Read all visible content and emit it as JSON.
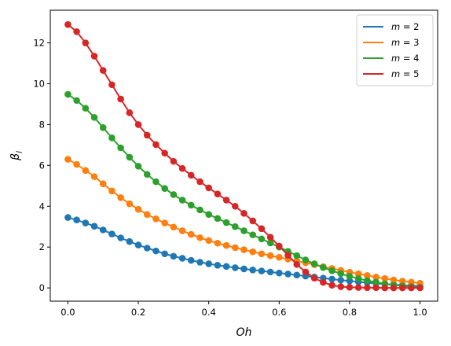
{
  "chart_data": {
    "type": "line",
    "title": "",
    "xlabel": "Oh",
    "ylabel": "β_l",
    "xlim": [
      -0.05,
      1.05
    ],
    "ylim": [
      -0.65,
      13.6
    ],
    "xticks": [
      0.0,
      0.2,
      0.4,
      0.6,
      0.8,
      1.0
    ],
    "xtick_labels": [
      "0.0",
      "0.2",
      "0.4",
      "0.6",
      "0.8",
      "1.0"
    ],
    "yticks": [
      0,
      2,
      4,
      6,
      8,
      10,
      12
    ],
    "ytick_labels": [
      "0",
      "2",
      "4",
      "6",
      "8",
      "10",
      "12"
    ],
    "grid": false,
    "legend_position": "top-right",
    "markers": "filled circles on each series",
    "series": [
      {
        "name": "m = 2",
        "color": "#1f77b4",
        "x": [
          0.0,
          0.025,
          0.05,
          0.075,
          0.1,
          0.125,
          0.15,
          0.175,
          0.2,
          0.225,
          0.25,
          0.275,
          0.3,
          0.325,
          0.35,
          0.375,
          0.4,
          0.425,
          0.45,
          0.475,
          0.5,
          0.525,
          0.55,
          0.575,
          0.6,
          0.625,
          0.65,
          0.675,
          0.7,
          0.725,
          0.75,
          0.775,
          0.8,
          0.825,
          0.85,
          0.875,
          0.9,
          0.925,
          0.95,
          0.975,
          1.0
        ],
        "y": [
          3.45,
          3.33,
          3.18,
          3.02,
          2.84,
          2.64,
          2.45,
          2.27,
          2.1,
          1.95,
          1.81,
          1.67,
          1.55,
          1.45,
          1.35,
          1.26,
          1.18,
          1.11,
          1.05,
          0.99,
          0.93,
          0.88,
          0.83,
          0.78,
          0.73,
          0.68,
          0.63,
          0.58,
          0.53,
          0.48,
          0.43,
          0.38,
          0.34,
          0.3,
          0.26,
          0.22,
          0.19,
          0.16,
          0.13,
          0.11,
          0.09
        ]
      },
      {
        "name": "m = 3",
        "color": "#ff7f0e",
        "x": [
          0.0,
          0.025,
          0.05,
          0.075,
          0.1,
          0.125,
          0.15,
          0.175,
          0.2,
          0.225,
          0.25,
          0.275,
          0.3,
          0.325,
          0.35,
          0.375,
          0.4,
          0.425,
          0.45,
          0.475,
          0.5,
          0.525,
          0.55,
          0.575,
          0.6,
          0.625,
          0.65,
          0.675,
          0.7,
          0.725,
          0.75,
          0.775,
          0.8,
          0.825,
          0.85,
          0.875,
          0.9,
          0.925,
          0.95,
          0.975,
          1.0
        ],
        "y": [
          6.3,
          6.05,
          5.75,
          5.45,
          5.1,
          4.75,
          4.42,
          4.12,
          3.85,
          3.6,
          3.38,
          3.18,
          2.98,
          2.8,
          2.62,
          2.46,
          2.32,
          2.19,
          2.08,
          1.97,
          1.87,
          1.77,
          1.67,
          1.58,
          1.5,
          1.41,
          1.32,
          1.23,
          1.14,
          1.04,
          0.95,
          0.86,
          0.77,
          0.69,
          0.61,
          0.53,
          0.46,
          0.39,
          0.33,
          0.28,
          0.23
        ]
      },
      {
        "name": "m = 4",
        "color": "#2ca02c",
        "x": [
          0.0,
          0.025,
          0.05,
          0.075,
          0.1,
          0.125,
          0.15,
          0.175,
          0.2,
          0.225,
          0.25,
          0.275,
          0.3,
          0.325,
          0.35,
          0.375,
          0.4,
          0.425,
          0.45,
          0.475,
          0.5,
          0.525,
          0.55,
          0.575,
          0.6,
          0.625,
          0.65,
          0.675,
          0.7,
          0.725,
          0.75,
          0.775,
          0.8,
          0.825,
          0.85,
          0.875,
          0.9,
          0.925,
          0.95,
          0.975,
          1.0
        ],
        "y": [
          9.48,
          9.18,
          8.8,
          8.35,
          7.85,
          7.35,
          6.86,
          6.4,
          5.96,
          5.56,
          5.2,
          4.87,
          4.57,
          4.3,
          4.05,
          3.82,
          3.6,
          3.4,
          3.2,
          3.0,
          2.8,
          2.6,
          2.4,
          2.2,
          2.0,
          1.79,
          1.58,
          1.37,
          1.18,
          1.0,
          0.84,
          0.7,
          0.57,
          0.46,
          0.36,
          0.28,
          0.2,
          0.14,
          0.1,
          0.06,
          0.03
        ]
      },
      {
        "name": "m = 5",
        "color": "#d62728",
        "x": [
          0.0,
          0.025,
          0.05,
          0.075,
          0.1,
          0.125,
          0.15,
          0.175,
          0.2,
          0.225,
          0.25,
          0.275,
          0.3,
          0.325,
          0.35,
          0.375,
          0.4,
          0.425,
          0.45,
          0.475,
          0.5,
          0.525,
          0.55,
          0.575,
          0.6,
          0.625,
          0.65,
          0.675,
          0.7,
          0.725,
          0.75,
          0.775,
          0.8,
          0.825,
          0.85,
          0.875,
          0.9,
          0.925,
          0.95,
          0.975,
          1.0
        ],
        "y": [
          12.9,
          12.55,
          12.0,
          11.35,
          10.65,
          9.95,
          9.25,
          8.58,
          8.0,
          7.48,
          7.02,
          6.6,
          6.2,
          5.85,
          5.52,
          5.2,
          4.9,
          4.6,
          4.3,
          4.0,
          3.65,
          3.28,
          2.9,
          2.48,
          2.05,
          1.6,
          1.15,
          0.78,
          0.48,
          0.27,
          0.13,
          0.06,
          0.03,
          0.02,
          0.01,
          0.01,
          0.0,
          0.0,
          0.0,
          0.0,
          0.0
        ]
      }
    ]
  },
  "legend": {
    "items": [
      {
        "label": "m = 2",
        "color": "#1f77b4"
      },
      {
        "label": "m = 3",
        "color": "#ff7f0e"
      },
      {
        "label": "m = 4",
        "color": "#2ca02c"
      },
      {
        "label": "m = 5",
        "color": "#d62728"
      }
    ]
  },
  "colors": {
    "axes": "#000000",
    "background": "#ffffff",
    "legend_border": "#cccccc"
  }
}
